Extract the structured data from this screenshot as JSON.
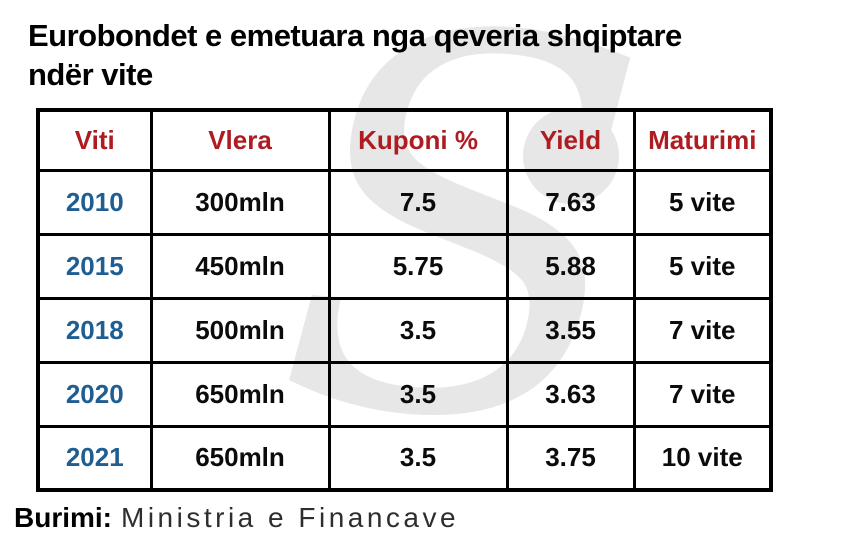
{
  "title": {
    "line1": "Eurobondet e emetuara nga qeveria shqiptare",
    "line2": "ndër vite"
  },
  "watermark": {
    "glyph": "S"
  },
  "source": {
    "label": "Burimi:",
    "value": "Ministria e Financave"
  },
  "colors": {
    "header_red": "#AE1C22",
    "year_blue": "#205E92",
    "border_black": "#000000",
    "watermark_gray": "#E7E7E7",
    "background": "#FFFFFF"
  },
  "chart_data": {
    "type": "table",
    "title": "Eurobondet e emetuara nga qeveria shqiptare ndër vite",
    "headers": [
      "Viti",
      "Vlera",
      "Kuponi %",
      "Yield",
      "Maturimi"
    ],
    "rows": [
      [
        "2010",
        "300mln",
        "7.5",
        "7.63",
        "5 vite"
      ],
      [
        "2015",
        "450mln",
        "5.75",
        "5.88",
        "5 vite"
      ],
      [
        "2018",
        "500mln",
        "3.5",
        "3.55",
        "7 vite"
      ],
      [
        "2020",
        "650mln",
        "3.5",
        "3.63",
        "7 vite"
      ],
      [
        "2021",
        "650mln",
        "3.5",
        "3.75",
        "10 vite"
      ]
    ],
    "source": "Burimi: Ministria e Financave"
  }
}
